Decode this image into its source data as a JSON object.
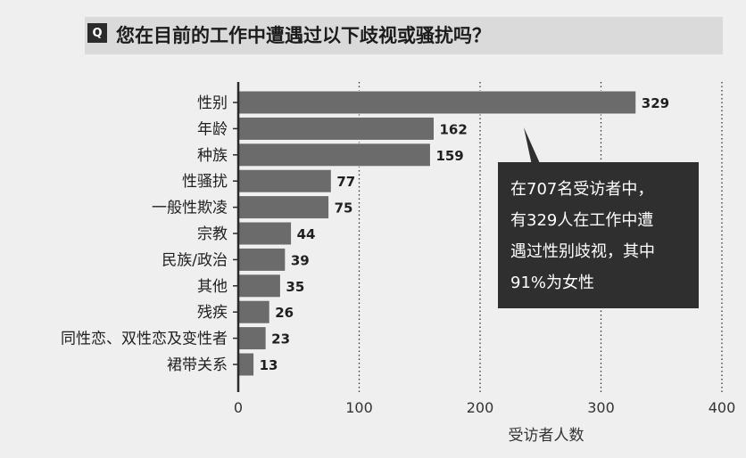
{
  "header": {
    "badge": "Q",
    "question": "您在目前的工作中遭遇过以下歧视或骚扰吗？"
  },
  "callout": {
    "lines": [
      "在707名受访者中，",
      "有329人在工作中遭",
      "遇过性别歧视，其中",
      "91%为女性"
    ]
  },
  "colors": {
    "bar": "#6b6b6b",
    "bar_stroke": "#f4f4f4",
    "background": "#efefef",
    "header_band": "#dadada",
    "callout_bg": "#2f2f2f",
    "axis": "#2a2a2a",
    "grid": "#333333"
  },
  "chart_data": {
    "type": "bar",
    "orientation": "horizontal",
    "title": "您在目前的工作中遭遇过以下歧视或骚扰吗？",
    "categories": [
      "性别",
      "年龄",
      "种族",
      "性骚扰",
      "一般性欺凌",
      "宗教",
      "民族/政治",
      "其他",
      "残疾",
      "同性恋、双性恋及变性者",
      "裙带关系"
    ],
    "values": [
      329,
      162,
      159,
      77,
      75,
      44,
      39,
      35,
      26,
      23,
      13
    ],
    "xlabel": "受访者人数",
    "ylabel": "",
    "xlim": [
      0,
      400
    ],
    "xticks": [
      0,
      100,
      200,
      300,
      400
    ],
    "grid": "vertical dotted",
    "data_labels": true
  }
}
